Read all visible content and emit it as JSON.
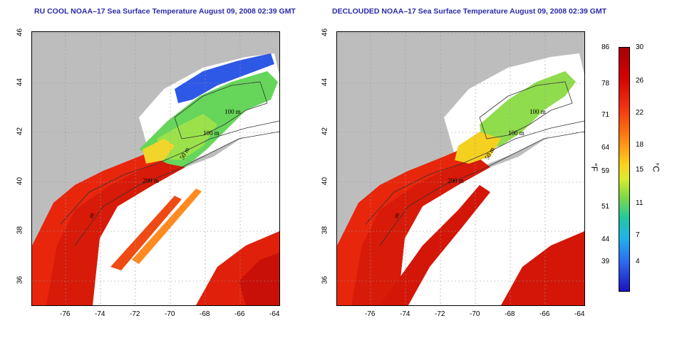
{
  "titles": {
    "left": "RU COOL NOAA–17 Sea Surface Temperature August 09, 2008 02:39 GMT",
    "right": "DECLOUDED NOAA–17 Sea Surface Temperature August 09, 2008 02:39 GMT"
  },
  "x_ticks": [
    "-76",
    "-74",
    "-72",
    "-70",
    "-68",
    "-66",
    "-64"
  ],
  "y_ticks": [
    "46",
    "44",
    "42",
    "40",
    "38",
    "36"
  ],
  "contours": {
    "left": [
      "100 m",
      "100 m",
      "50 m",
      "200 m",
      "m"
    ],
    "right": [
      "100 m",
      "100 m",
      "50 m",
      "200 m",
      "m"
    ]
  },
  "colorbar": {
    "fahrenheit": [
      "86",
      "78",
      "71",
      "64",
      "59",
      "51",
      "44",
      "39"
    ],
    "celsius": [
      "30",
      "26",
      "22",
      "18",
      "15",
      "11",
      "7",
      "4"
    ],
    "unit_f": "°F",
    "unit_c": "°C"
  },
  "colors": {
    "land": "#bdbdbd",
    "cloud": "#ffffff",
    "warm": "#e8260c",
    "cool": "#3fd07a",
    "cold": "#1a40e0",
    "title": "#2a2aa8"
  }
}
